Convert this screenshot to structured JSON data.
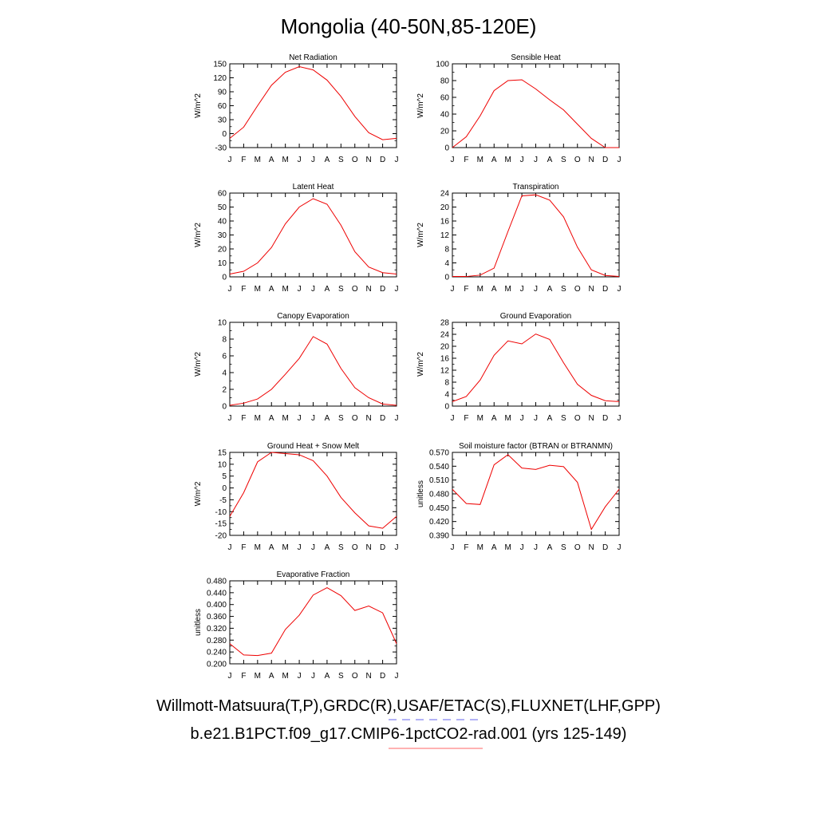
{
  "title": "Mongolia (40-50N,85-120E)",
  "footer": {
    "observations": "Willmott-Matsuura(T,P),GRDC(R),USAF/ETAC(S),FLUXNET(LHF,GPP)",
    "case": "b.e21.B1PCT.f09_g17.CMIP6-1pctCO2-rad.001 (yrs 125-149)",
    "obs_line_color": "#6666ee",
    "case_line_color": "#ff6666"
  },
  "line_color": "#ee0000",
  "chart_data": [
    {
      "type": "line",
      "title": "Net Radiation",
      "ylabel": "W/m^2",
      "categories": [
        "J",
        "F",
        "M",
        "A",
        "M",
        "J",
        "J",
        "A",
        "S",
        "O",
        "N",
        "D",
        "J"
      ],
      "values": [
        -10,
        14,
        60,
        104,
        132,
        144,
        137,
        115,
        80,
        37,
        2,
        -13,
        -10
      ],
      "ylim": [
        -30,
        150
      ],
      "yticks": [
        "-30",
        "0",
        "30",
        "60",
        "90",
        "120",
        "150"
      ]
    },
    {
      "type": "line",
      "title": "Sensible Heat",
      "ylabel": "W/m^2",
      "categories": [
        "J",
        "F",
        "M",
        "A",
        "M",
        "J",
        "J",
        "A",
        "S",
        "O",
        "N",
        "D",
        "J"
      ],
      "values": [
        0,
        13,
        38,
        68,
        80,
        81,
        70,
        57,
        45,
        28,
        11,
        0,
        0
      ],
      "ylim": [
        0,
        100
      ],
      "yticks": [
        "0",
        "20",
        "40",
        "60",
        "80",
        "100"
      ]
    },
    {
      "type": "line",
      "title": "Latent Heat",
      "ylabel": "W/m^2",
      "categories": [
        "J",
        "F",
        "M",
        "A",
        "M",
        "J",
        "J",
        "A",
        "S",
        "O",
        "N",
        "D",
        "J"
      ],
      "values": [
        2,
        4,
        10,
        21,
        38,
        50,
        56,
        52,
        37,
        18,
        7,
        3,
        2
      ],
      "ylim": [
        0,
        60
      ],
      "yticks": [
        "0",
        "10",
        "20",
        "30",
        "40",
        "50",
        "60"
      ]
    },
    {
      "type": "line",
      "title": "Transpiration",
      "ylabel": "W/m^2",
      "categories": [
        "J",
        "F",
        "M",
        "A",
        "M",
        "J",
        "J",
        "A",
        "S",
        "O",
        "N",
        "D",
        "J"
      ],
      "values": [
        0.1,
        0.1,
        0.5,
        2.5,
        13,
        23.2,
        23.5,
        22,
        17.2,
        8.5,
        2,
        0.4,
        0.1
      ],
      "ylim": [
        0,
        24
      ],
      "yticks": [
        "0",
        "4",
        "8",
        "12",
        "16",
        "20",
        "24"
      ]
    },
    {
      "type": "line",
      "title": "Canopy Evaporation",
      "ylabel": "W/m^2",
      "categories": [
        "J",
        "F",
        "M",
        "A",
        "M",
        "J",
        "J",
        "A",
        "S",
        "O",
        "N",
        "D",
        "J"
      ],
      "values": [
        0.1,
        0.35,
        0.85,
        2,
        3.8,
        5.7,
        8.3,
        7.4,
        4.5,
        2.2,
        1.0,
        0.25,
        0.1
      ],
      "ylim": [
        0,
        10
      ],
      "yticks": [
        "0",
        "2",
        "4",
        "6",
        "8",
        "10"
      ]
    },
    {
      "type": "line",
      "title": "Ground Evaporation",
      "ylabel": "W/m^2",
      "categories": [
        "J",
        "F",
        "M",
        "A",
        "M",
        "J",
        "J",
        "A",
        "S",
        "O",
        "N",
        "D",
        "J"
      ],
      "values": [
        1.5,
        3.2,
        8.7,
        17,
        21.8,
        20.8,
        24.1,
        22.3,
        14.5,
        7.3,
        3.6,
        1.8,
        1.5
      ],
      "ylim": [
        0,
        28
      ],
      "yticks": [
        "0",
        "4",
        "8",
        "12",
        "16",
        "20",
        "24",
        "28"
      ]
    },
    {
      "type": "line",
      "title": "Ground Heat + Snow Melt",
      "ylabel": "W/m^2",
      "categories": [
        "J",
        "F",
        "M",
        "A",
        "M",
        "J",
        "J",
        "A",
        "S",
        "O",
        "N",
        "D",
        "J"
      ],
      "values": [
        -12,
        -2,
        11,
        15,
        14.5,
        14,
        11.5,
        5,
        -4,
        -10.5,
        -16,
        -17,
        -12
      ],
      "ylim": [
        -20,
        15
      ],
      "yticks": [
        "-20",
        "-15",
        "-10",
        "-5",
        "0",
        "5",
        "10",
        "15"
      ]
    },
    {
      "type": "line",
      "title": "Soil moisture factor (BTRAN or BTRANMN)",
      "ylabel": "unitless",
      "categories": [
        "J",
        "F",
        "M",
        "A",
        "M",
        "J",
        "J",
        "A",
        "S",
        "O",
        "N",
        "D",
        "J"
      ],
      "values": [
        0.49,
        0.459,
        0.457,
        0.543,
        0.565,
        0.536,
        0.533,
        0.542,
        0.539,
        0.505,
        0.403,
        0.452,
        0.49
      ],
      "ylim": [
        0.39,
        0.57
      ],
      "yticks": [
        "0.390",
        "0.420",
        "0.450",
        "0.480",
        "0.510",
        "0.540",
        "0.570"
      ]
    },
    {
      "type": "line",
      "title": "Evaporative Fraction",
      "ylabel": "unitless",
      "categories": [
        "J",
        "F",
        "M",
        "A",
        "M",
        "J",
        "J",
        "A",
        "S",
        "O",
        "N",
        "D",
        "J"
      ],
      "values": [
        0.268,
        0.23,
        0.228,
        0.236,
        0.316,
        0.364,
        0.432,
        0.457,
        0.43,
        0.38,
        0.395,
        0.372,
        0.268
      ],
      "ylim": [
        0.2,
        0.48
      ],
      "yticks": [
        "0.200",
        "0.240",
        "0.280",
        "0.320",
        "0.360",
        "0.400",
        "0.440",
        "0.480"
      ]
    }
  ]
}
